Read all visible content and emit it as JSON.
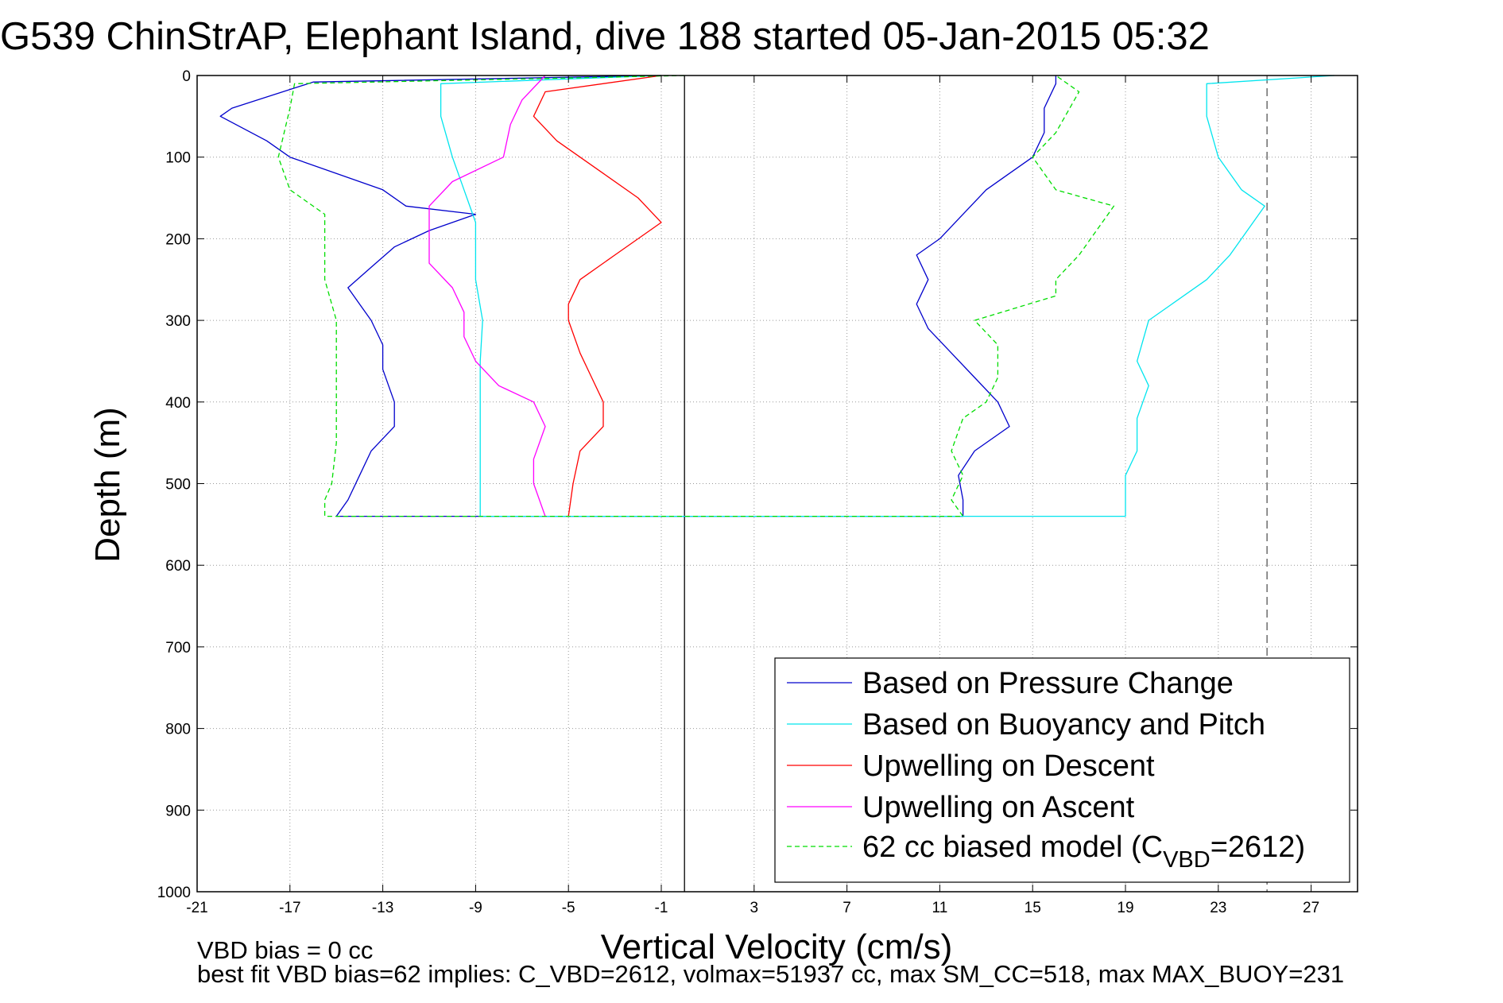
{
  "chart_data": {
    "type": "line",
    "title": "G539 ChinStrAP, Elephant Island, dive 188 started 05-Jan-2015 05:32",
    "xlabel": "Vertical Velocity (cm/s)",
    "ylabel": "Depth (m)",
    "xlim": [
      -21,
      29
    ],
    "ylim": [
      0,
      1000
    ],
    "y_reversed": true,
    "grid": true,
    "xticks": [
      -21,
      -17,
      -13,
      -9,
      -5,
      -1,
      3,
      7,
      11,
      15,
      19,
      23,
      27
    ],
    "yticks": [
      0,
      100,
      200,
      300,
      400,
      500,
      600,
      700,
      800,
      900,
      1000
    ],
    "vertical_lines": [
      {
        "x": 0,
        "style": "solid",
        "color": "#000000"
      },
      {
        "x": 25.1,
        "style": "dashed",
        "color": "#555555"
      }
    ],
    "legend_position": "bottom-right",
    "series": [
      {
        "name": "Based on Pressure Change",
        "color": "#0000cc",
        "style": "solid",
        "points": [
          [
            -1,
            0
          ],
          [
            -16,
            8
          ],
          [
            -19.5,
            40
          ],
          [
            -20,
            50
          ],
          [
            -18,
            80
          ],
          [
            -17,
            100
          ],
          [
            -15,
            120
          ],
          [
            -13,
            140
          ],
          [
            -12,
            160
          ],
          [
            -9,
            170
          ],
          [
            -11,
            190
          ],
          [
            -12.5,
            210
          ],
          [
            -13.5,
            235
          ],
          [
            -14.5,
            260
          ],
          [
            -14,
            280
          ],
          [
            -13.5,
            300
          ],
          [
            -13,
            330
          ],
          [
            -13,
            360
          ],
          [
            -12.5,
            400
          ],
          [
            -12.5,
            430
          ],
          [
            -13.5,
            460
          ],
          [
            -14,
            490
          ],
          [
            -14.5,
            520
          ],
          [
            -15,
            540
          ],
          [
            12,
            540
          ],
          [
            12,
            520
          ],
          [
            11.8,
            490
          ],
          [
            12.5,
            460
          ],
          [
            14,
            430
          ],
          [
            13.5,
            400
          ],
          [
            12.5,
            370
          ],
          [
            11.5,
            340
          ],
          [
            10.5,
            310
          ],
          [
            10,
            280
          ],
          [
            10.5,
            250
          ],
          [
            10,
            220
          ],
          [
            11,
            200
          ],
          [
            12,
            170
          ],
          [
            13,
            140
          ],
          [
            14,
            120
          ],
          [
            15,
            100
          ],
          [
            15.5,
            70
          ],
          [
            15.5,
            40
          ],
          [
            16,
            10
          ],
          [
            16,
            0
          ]
        ]
      },
      {
        "name": "Based on Buoyancy and Pitch",
        "color": "#00e5ee",
        "style": "solid",
        "points": [
          [
            -1,
            0
          ],
          [
            -10.5,
            10
          ],
          [
            -10.5,
            50
          ],
          [
            -10,
            100
          ],
          [
            -9.5,
            140
          ],
          [
            -9,
            180
          ],
          [
            -9,
            200
          ],
          [
            -9,
            250
          ],
          [
            -8.7,
            300
          ],
          [
            -8.8,
            350
          ],
          [
            -8.8,
            400
          ],
          [
            -8.8,
            450
          ],
          [
            -8.8,
            500
          ],
          [
            -8.8,
            540
          ],
          [
            19,
            540
          ],
          [
            19,
            520
          ],
          [
            19,
            490
          ],
          [
            19.5,
            460
          ],
          [
            19.5,
            420
          ],
          [
            20,
            380
          ],
          [
            19.5,
            350
          ],
          [
            20,
            300
          ],
          [
            21,
            280
          ],
          [
            22.5,
            250
          ],
          [
            23.5,
            220
          ],
          [
            24,
            200
          ],
          [
            25,
            160
          ],
          [
            24,
            140
          ],
          [
            23,
            100
          ],
          [
            22.5,
            50
          ],
          [
            22.5,
            10
          ],
          [
            28,
            0
          ]
        ]
      },
      {
        "name": "Upwelling on Descent",
        "color": "#ff0000",
        "style": "solid",
        "points": [
          [
            -1,
            0
          ],
          [
            -6,
            20
          ],
          [
            -6.5,
            50
          ],
          [
            -5.5,
            80
          ],
          [
            -4.5,
            100
          ],
          [
            -3.5,
            120
          ],
          [
            -2,
            150
          ],
          [
            -1,
            180
          ],
          [
            -2,
            200
          ],
          [
            -3,
            220
          ],
          [
            -4.5,
            250
          ],
          [
            -5,
            280
          ],
          [
            -5,
            300
          ],
          [
            -4.5,
            340
          ],
          [
            -4,
            370
          ],
          [
            -3.5,
            400
          ],
          [
            -3.5,
            430
          ],
          [
            -4.5,
            460
          ],
          [
            -4.8,
            500
          ],
          [
            -5,
            540
          ]
        ]
      },
      {
        "name": "Upwelling on Ascent",
        "color": "#ff00ff",
        "style": "solid",
        "points": [
          [
            -6,
            0
          ],
          [
            -7,
            30
          ],
          [
            -7.5,
            60
          ],
          [
            -7.8,
            100
          ],
          [
            -10,
            130
          ],
          [
            -11,
            160
          ],
          [
            -11,
            200
          ],
          [
            -11,
            230
          ],
          [
            -10,
            260
          ],
          [
            -9.5,
            290
          ],
          [
            -9.5,
            320
          ],
          [
            -9,
            350
          ],
          [
            -8,
            380
          ],
          [
            -6.5,
            400
          ],
          [
            -6,
            430
          ],
          [
            -6.5,
            470
          ],
          [
            -6.5,
            500
          ],
          [
            -6,
            540
          ]
        ]
      },
      {
        "name": "62 cc biased model (C",
        "name_sub": "VBD",
        "name_tail": "=2612)",
        "color": "#00dd00",
        "style": "dashed",
        "points": [
          [
            0,
            0
          ],
          [
            -16.8,
            10
          ],
          [
            -17,
            40
          ],
          [
            -17.5,
            100
          ],
          [
            -17,
            140
          ],
          [
            -15.5,
            170
          ],
          [
            -15.5,
            200
          ],
          [
            -15.5,
            250
          ],
          [
            -15,
            300
          ],
          [
            -15,
            350
          ],
          [
            -15,
            400
          ],
          [
            -15,
            450
          ],
          [
            -15.2,
            500
          ],
          [
            -15.5,
            520
          ],
          [
            -15.5,
            540
          ],
          [
            12,
            540
          ],
          [
            11.5,
            520
          ],
          [
            12,
            490
          ],
          [
            11.5,
            460
          ],
          [
            12,
            420
          ],
          [
            13,
            400
          ],
          [
            13.5,
            370
          ],
          [
            13.5,
            330
          ],
          [
            12.5,
            300
          ],
          [
            16,
            270
          ],
          [
            16,
            250
          ],
          [
            17,
            220
          ],
          [
            17.5,
            200
          ],
          [
            18.5,
            160
          ],
          [
            16,
            140
          ],
          [
            15,
            100
          ],
          [
            16,
            70
          ],
          [
            17,
            20
          ],
          [
            16,
            0
          ]
        ]
      }
    ]
  },
  "notes": {
    "line1": "VBD bias = 0 cc",
    "line2": "best fit VBD bias=62 implies: C_VBD=2612, volmax=51937 cc, max SM_CC=518, max MAX_BUOY=231"
  },
  "colors": {
    "grid": "#999999",
    "axis": "#000000",
    "legend_border": "#000000"
  }
}
